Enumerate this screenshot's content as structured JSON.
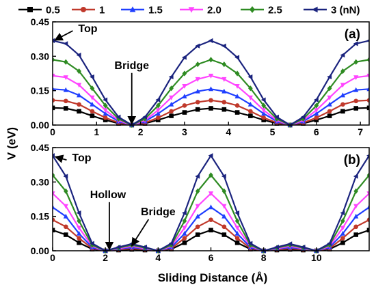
{
  "figure": {
    "ylabel": "V (eV)",
    "xlabel": "Sliding Distance (Å)"
  },
  "legend": {
    "placement": "top",
    "entries": [
      {
        "label": "0.5",
        "color": "#000000",
        "marker": "square"
      },
      {
        "label": "1",
        "color": "#c0392b",
        "marker": "circle"
      },
      {
        "label": "1.5",
        "color": "#1f3fff",
        "marker": "triangle-up"
      },
      {
        "label": "2.0",
        "color": "#ff44ff",
        "marker": "triangle-down"
      },
      {
        "label": "2.5",
        "color": "#2e8b22",
        "marker": "diamond"
      },
      {
        "label": "3 (nN)",
        "color": "#1a237e",
        "marker": "triangle-left"
      }
    ]
  },
  "chart_data": [
    {
      "type": "line",
      "panel_label": "(a)",
      "xlim": [
        0,
        7.2
      ],
      "ylim": [
        0,
        0.45
      ],
      "xticks": [
        "0",
        "1",
        "2",
        "3",
        "4",
        "5",
        "6",
        "7"
      ],
      "yticks": [
        "0.00",
        "0.15",
        "0.30",
        "0.45"
      ],
      "annotations": [
        {
          "text": "Top",
          "x": 0.05,
          "y": 0.37,
          "text_x": 0.8,
          "text_y": 0.405
        },
        {
          "text": "Bridge",
          "x": 1.8,
          "y": 0.005,
          "text_x": 1.8,
          "text_y": 0.245
        }
      ],
      "x": [
        0,
        0.3,
        0.6,
        0.9,
        1.2,
        1.5,
        1.8,
        2.1,
        2.4,
        2.7,
        3.0,
        3.3,
        3.6,
        3.9,
        4.2,
        4.5,
        4.8,
        5.1,
        5.4,
        5.7,
        6.0,
        6.3,
        6.6,
        6.9,
        7.2
      ],
      "series": [
        {
          "name": "0.5",
          "values": [
            0.075,
            0.073,
            0.06,
            0.04,
            0.022,
            0.007,
            0.0,
            0.007,
            0.022,
            0.04,
            0.055,
            0.068,
            0.073,
            0.068,
            0.055,
            0.04,
            0.022,
            0.007,
            0.0,
            0.007,
            0.022,
            0.04,
            0.06,
            0.073,
            0.075
          ]
        },
        {
          "name": "1",
          "values": [
            0.108,
            0.105,
            0.09,
            0.06,
            0.032,
            0.01,
            0.0,
            0.01,
            0.032,
            0.06,
            0.085,
            0.1,
            0.108,
            0.1,
            0.085,
            0.06,
            0.032,
            0.01,
            0.0,
            0.01,
            0.032,
            0.06,
            0.09,
            0.105,
            0.108
          ]
        },
        {
          "name": "1.5",
          "values": [
            0.157,
            0.153,
            0.13,
            0.09,
            0.05,
            0.016,
            0.0,
            0.016,
            0.05,
            0.09,
            0.125,
            0.147,
            0.157,
            0.147,
            0.125,
            0.09,
            0.05,
            0.016,
            0.0,
            0.016,
            0.05,
            0.09,
            0.13,
            0.153,
            0.157
          ]
        },
        {
          "name": "2.0",
          "values": [
            0.215,
            0.208,
            0.175,
            0.12,
            0.065,
            0.02,
            0.0,
            0.02,
            0.065,
            0.12,
            0.17,
            0.2,
            0.215,
            0.2,
            0.17,
            0.12,
            0.065,
            0.02,
            0.0,
            0.02,
            0.065,
            0.12,
            0.175,
            0.208,
            0.215
          ]
        },
        {
          "name": "2.5",
          "values": [
            0.285,
            0.275,
            0.235,
            0.16,
            0.085,
            0.027,
            0.0,
            0.027,
            0.085,
            0.16,
            0.225,
            0.265,
            0.285,
            0.265,
            0.225,
            0.16,
            0.085,
            0.027,
            0.0,
            0.027,
            0.085,
            0.16,
            0.235,
            0.275,
            0.285
          ]
        },
        {
          "name": "3 (nN)",
          "values": [
            0.368,
            0.355,
            0.305,
            0.21,
            0.11,
            0.035,
            0.0,
            0.035,
            0.11,
            0.21,
            0.295,
            0.345,
            0.368,
            0.345,
            0.295,
            0.21,
            0.11,
            0.035,
            0.0,
            0.035,
            0.11,
            0.21,
            0.305,
            0.355,
            0.368
          ]
        }
      ]
    },
    {
      "type": "line",
      "panel_label": "(b)",
      "xlim": [
        0,
        12
      ],
      "ylim": [
        0,
        0.45
      ],
      "xticks": [
        "0",
        "2",
        "4",
        "6",
        "8",
        "10"
      ],
      "yticks": [
        "0.00",
        "0.15",
        "0.30",
        "0.45"
      ],
      "annotations": [
        {
          "text": "Top",
          "x": 0.1,
          "y": 0.41,
          "text_x": 1.1,
          "text_y": 0.39
        },
        {
          "text": "Hollow",
          "x": 2.15,
          "y": 0.005,
          "text_x": 2.1,
          "text_y": 0.23
        },
        {
          "text": "Bridge",
          "x": 3.0,
          "y": 0.022,
          "text_x": 4.0,
          "text_y": 0.155
        }
      ],
      "x": [
        0,
        0.5,
        1.0,
        1.5,
        2.0,
        2.5,
        3.0,
        3.5,
        4.0,
        4.5,
        5.0,
        5.5,
        6.0,
        6.5,
        7.0,
        7.5,
        8.0,
        8.5,
        9.0,
        9.5,
        10.0,
        10.5,
        11.0,
        11.5,
        12.0
      ],
      "series": [
        {
          "name": "0.5",
          "values": [
            0.09,
            0.07,
            0.035,
            0.007,
            0.0,
            0.003,
            0.006,
            0.003,
            0.0,
            0.007,
            0.035,
            0.07,
            0.09,
            0.07,
            0.035,
            0.007,
            0.0,
            0.003,
            0.006,
            0.003,
            0.0,
            0.007,
            0.035,
            0.07,
            0.09
          ]
        },
        {
          "name": "1",
          "values": [
            0.135,
            0.105,
            0.055,
            0.01,
            0.0,
            0.005,
            0.01,
            0.005,
            0.0,
            0.01,
            0.055,
            0.105,
            0.135,
            0.105,
            0.055,
            0.01,
            0.0,
            0.005,
            0.01,
            0.005,
            0.0,
            0.01,
            0.055,
            0.105,
            0.135
          ]
        },
        {
          "name": "1.5",
          "values": [
            0.19,
            0.15,
            0.075,
            0.015,
            0.0,
            0.008,
            0.015,
            0.008,
            0.0,
            0.015,
            0.075,
            0.15,
            0.19,
            0.15,
            0.075,
            0.015,
            0.0,
            0.008,
            0.015,
            0.008,
            0.0,
            0.015,
            0.075,
            0.15,
            0.19
          ]
        },
        {
          "name": "2.0",
          "values": [
            0.25,
            0.195,
            0.1,
            0.02,
            0.0,
            0.01,
            0.02,
            0.01,
            0.0,
            0.02,
            0.1,
            0.195,
            0.25,
            0.195,
            0.1,
            0.02,
            0.0,
            0.01,
            0.02,
            0.01,
            0.0,
            0.02,
            0.1,
            0.195,
            0.25
          ]
        },
        {
          "name": "2.5",
          "values": [
            0.33,
            0.26,
            0.13,
            0.025,
            0.0,
            0.013,
            0.025,
            0.013,
            0.0,
            0.025,
            0.13,
            0.26,
            0.33,
            0.26,
            0.13,
            0.025,
            0.0,
            0.013,
            0.025,
            0.013,
            0.0,
            0.025,
            0.13,
            0.26,
            0.33
          ]
        },
        {
          "name": "3 (nN)",
          "values": [
            0.415,
            0.325,
            0.165,
            0.032,
            0.0,
            0.016,
            0.03,
            0.016,
            0.0,
            0.032,
            0.165,
            0.325,
            0.415,
            0.325,
            0.165,
            0.032,
            0.0,
            0.016,
            0.03,
            0.016,
            0.0,
            0.032,
            0.165,
            0.325,
            0.415
          ]
        }
      ]
    }
  ]
}
